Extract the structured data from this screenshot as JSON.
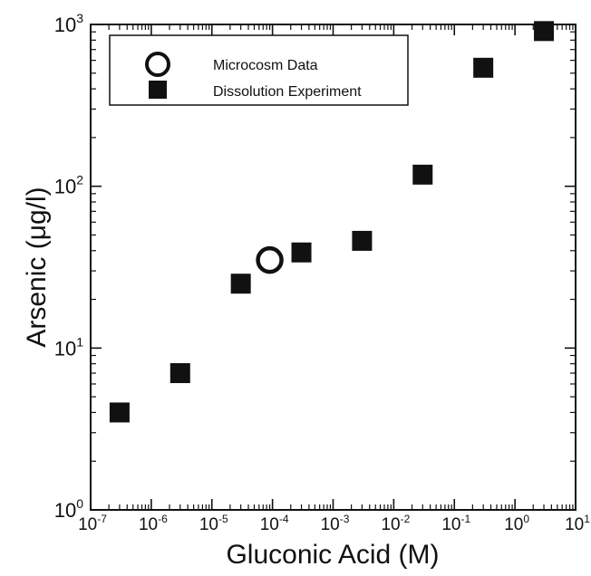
{
  "chart_data": {
    "type": "scatter",
    "xlabel": "Gluconic Acid (M)",
    "ylabel": "Arsenic (μg/l)",
    "x_scale": "log",
    "y_scale": "log",
    "xlim": [
      1e-07,
      10
    ],
    "ylim": [
      1,
      1000
    ],
    "x_tick_labels": [
      {
        "base": "10",
        "exp": "-7"
      },
      {
        "base": "10",
        "exp": "-6"
      },
      {
        "base": "10",
        "exp": "-5"
      },
      {
        "base": "10",
        "exp": "-4"
      },
      {
        "base": "10",
        "exp": "-3"
      },
      {
        "base": "10",
        "exp": "-2"
      },
      {
        "base": "10",
        "exp": "-1"
      },
      {
        "base": "10",
        "exp": "0"
      },
      {
        "base": "10",
        "exp": "1"
      }
    ],
    "y_tick_labels": [
      {
        "base": "10",
        "exp": "0"
      },
      {
        "base": "10",
        "exp": "1"
      },
      {
        "base": "10",
        "exp": "2"
      },
      {
        "base": "10",
        "exp": "3"
      }
    ],
    "grid": false,
    "legend_position": "top-left",
    "series": [
      {
        "name": "Microcosm Data",
        "marker": "open-circle",
        "color": "#111111",
        "points": [
          {
            "x": 9e-05,
            "y": 35
          }
        ]
      },
      {
        "name": "Dissolution Experiment",
        "marker": "filled-square",
        "color": "#111111",
        "points": [
          {
            "x": 3e-07,
            "y": 4
          },
          {
            "x": 3e-06,
            "y": 7
          },
          {
            "x": 3e-05,
            "y": 25
          },
          {
            "x": 0.0003,
            "y": 39
          },
          {
            "x": 0.003,
            "y": 46
          },
          {
            "x": 0.03,
            "y": 118
          },
          {
            "x": 0.3,
            "y": 540
          },
          {
            "x": 3,
            "y": 910
          }
        ]
      }
    ]
  }
}
